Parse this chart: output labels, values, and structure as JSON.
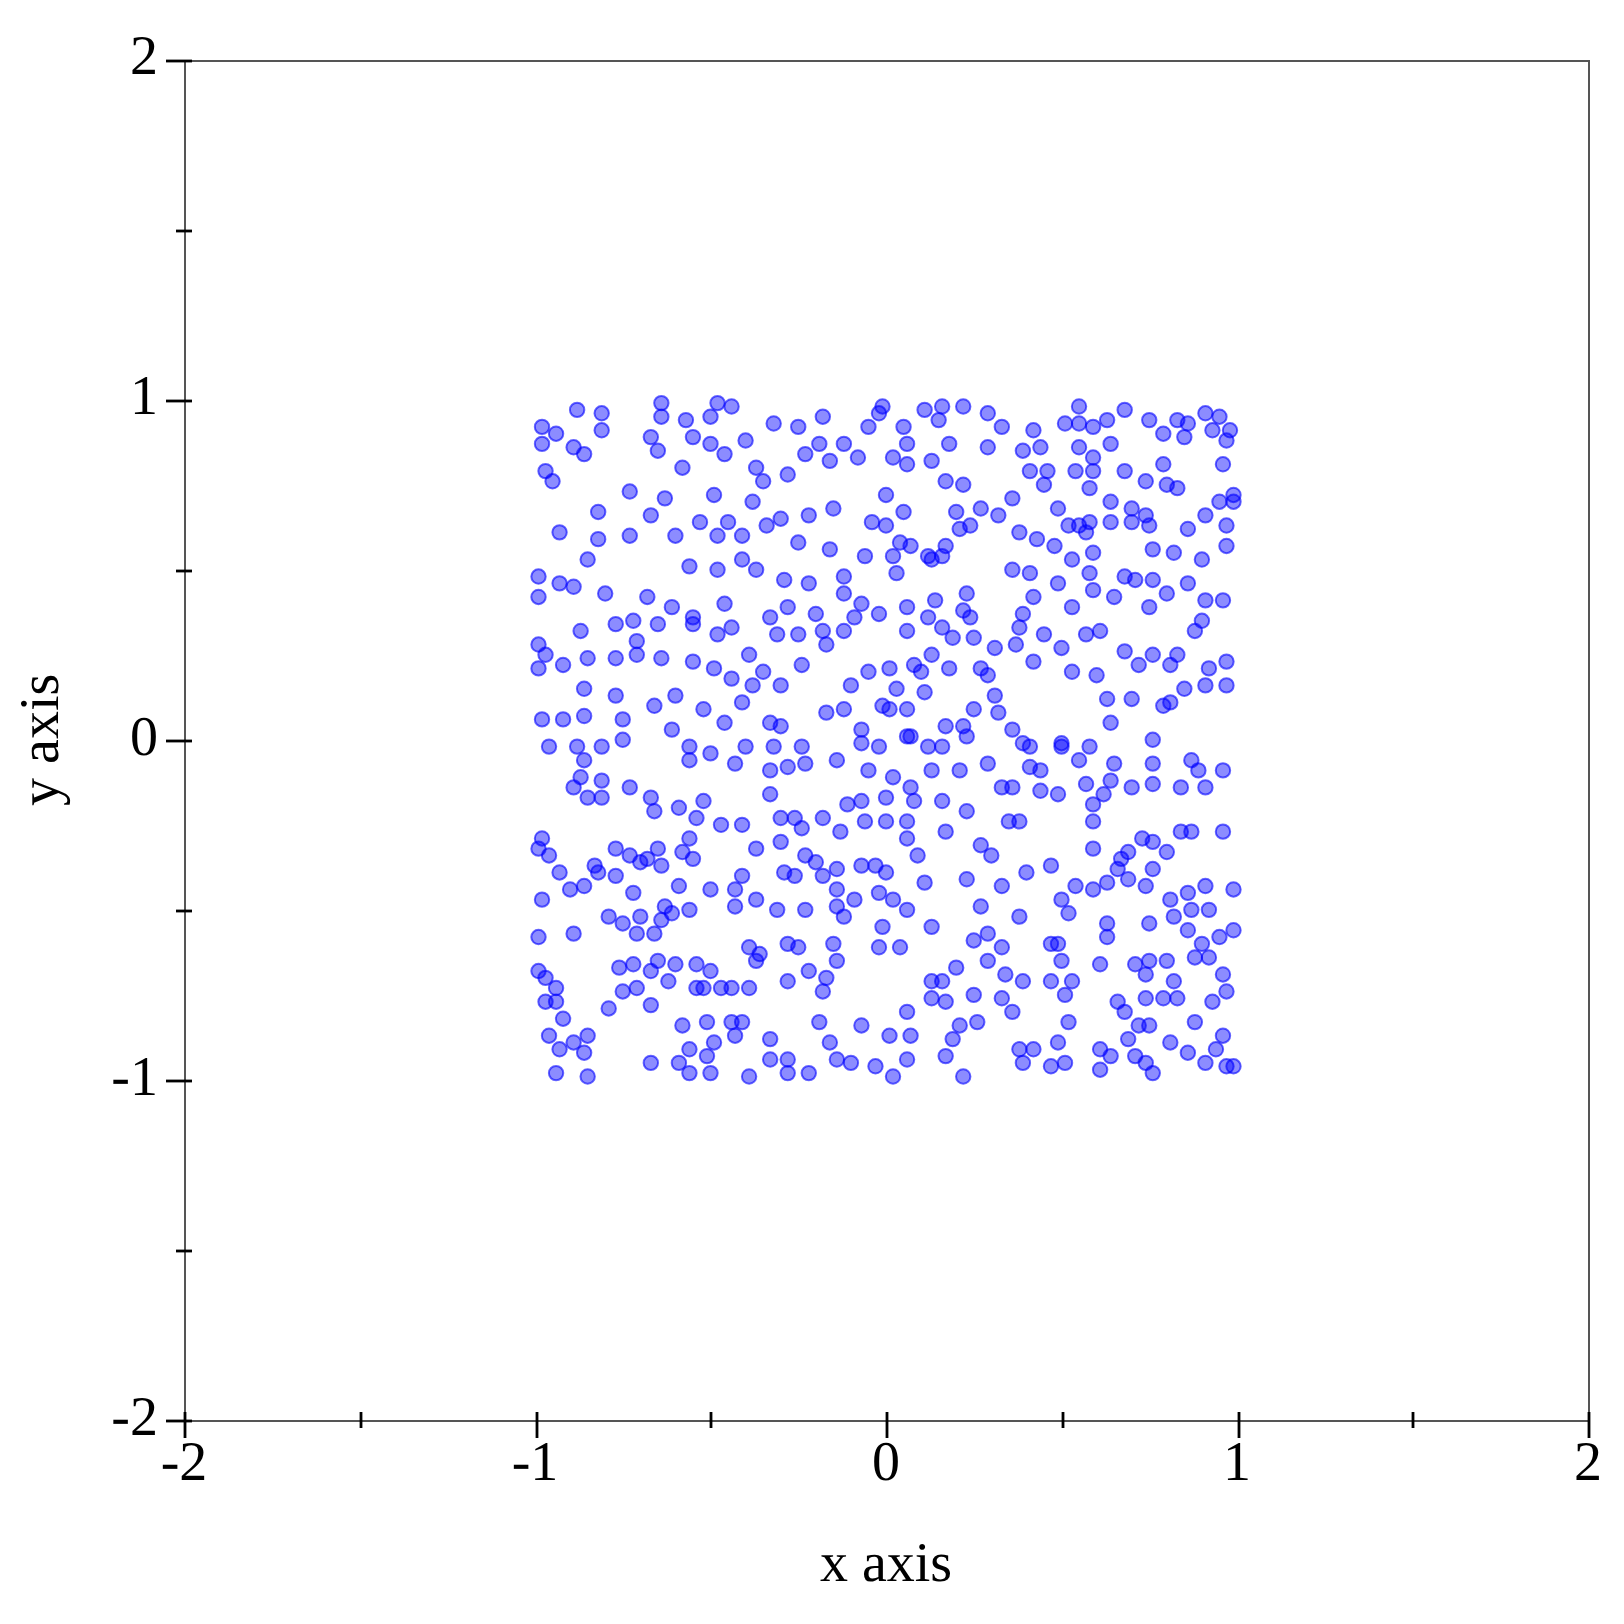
{
  "chart_data": {
    "type": "scatter",
    "xlabel": "x axis",
    "ylabel": "y axis",
    "xlim": [
      -2,
      2
    ],
    "ylim": [
      -2,
      2
    ],
    "xticks": [
      -2,
      {
        "value": -1.5,
        "label": null
      },
      -1,
      {
        "value": -0.5,
        "label": null
      },
      0,
      {
        "value": 0.5,
        "label": null
      },
      1,
      {
        "value": 1.5,
        "label": null
      },
      2
    ],
    "yticks": [
      -2,
      {
        "value": -1.5,
        "label": null
      },
      -1,
      {
        "value": -0.5,
        "label": null
      },
      0,
      {
        "value": 0.5,
        "label": null
      },
      1,
      {
        "value": 1.5,
        "label": null
      },
      2
    ],
    "grid": false,
    "legend": false,
    "marker": "circle",
    "color": "#0000ff",
    "x": [
      -0.98,
      -0.98,
      -0.94,
      -0.88,
      -0.81,
      -0.81,
      -0.89,
      -0.86,
      -0.97,
      -0.95,
      -0.64,
      -0.64,
      -0.57,
      -0.55,
      -0.67,
      -0.65,
      -0.58,
      -0.48,
      -0.44,
      -0.5,
      -0.5,
      -0.46,
      -0.4,
      -0.73,
      -0.82,
      -0.93,
      -0.82,
      -0.73,
      -0.67,
      -0.63,
      -0.6,
      -0.53,
      -0.49,
      -0.48,
      -0.45,
      -0.41,
      -0.38,
      -0.35,
      -0.37,
      -0.34,
      -0.3,
      -0.28,
      -0.32,
      -0.25,
      -0.18,
      -0.19,
      -0.23,
      -0.12,
      -0.16,
      -0.08,
      -0.02,
      -0.05,
      -0.22,
      -0.15,
      -0.04,
      0,
      -0.25,
      -0.16,
      -0.06,
      -0.56,
      -0.48,
      -0.41,
      -0.37,
      -0.29,
      -0.22,
      -0.12,
      -0.12,
      -0.07,
      -0.99,
      -0.99,
      -0.93,
      -0.89,
      -0.85,
      -0.8,
      -0.68,
      -0.61,
      -0.55,
      -0.46,
      -0.33,
      -0.28,
      -0.2,
      -0.09,
      -0.02,
      -0.87,
      -0.77,
      -0.72,
      -0.71,
      -0.65,
      -0.55,
      -0.48,
      -0.44,
      -0.39,
      -0.31,
      -0.25,
      -0.18,
      -0.17,
      -0.12,
      -0.99,
      -0.97,
      -0.92,
      -0.99,
      -0.85,
      -0.77,
      -0.71,
      -0.64,
      -0.55,
      -0.49,
      -0.44,
      -0.38,
      -0.35,
      -0.3,
      -0.24,
      -0.1,
      -0.05,
      -0.86,
      -0.77,
      -0.66,
      -0.6,
      -0.52,
      -0.46,
      -0.41,
      -0.33,
      -0.3,
      -0.17,
      -0.12,
      -0.07,
      -0.01,
      -0.98,
      -0.92,
      -0.86,
      -0.75,
      -0.61,
      -0.01,
      0.11,
      0.16,
      0.15,
      0.22,
      0.29,
      0.33,
      0.05,
      0.06,
      0.18,
      0.29,
      0.02,
      0.06,
      0.13,
      0.17,
      0.22,
      0.39,
      0.44,
      0.42,
      0.51,
      0.55,
      0.59,
      0.63,
      0.55,
      0.68,
      0.55,
      0.59,
      0.64,
      0.41,
      0.46,
      0.45,
      0.54,
      0.59,
      0.58,
      0.68,
      0.75,
      0.79,
      0.83,
      0.86,
      0.85,
      0.91,
      0.95,
      0.93,
      0.98,
      0.97,
      0.96,
      0.79,
      0.8,
      0.83,
      0.74,
      0.99,
      0.99,
      0.95,
      0.97,
      0.97,
      0.91,
      0.86,
      0.74,
      0.75,
      0.76,
      0.82,
      0.9,
      0.7,
      0.7,
      0.64,
      0.64,
      0.58,
      0.55,
      0.49,
      0.52,
      0.57,
      0.48,
      0.43,
      0.38,
      0.36,
      0.32,
      0.27,
      0.24,
      0.21,
      0.2,
      0.17,
      0.07,
      0.04,
      0.05,
      0,
      0.02,
      0.03,
      0.12,
      0.16,
      0.13,
      0.36,
      0.41,
      0.42,
      0.39,
      0.49,
      0.53,
      0.59,
      0.65,
      0.68,
      0.71,
      0.76,
      0.8,
      0.75,
      0.86,
      0.91,
      0.96,
      0.9,
      0.88,
      0.83,
      0.97,
      0.92,
      0.91,
      0.97,
      0.85,
      0.81,
      0.79,
      0.7,
      0.63,
      0.64,
      0.72,
      0.76,
      0.81,
      0.68,
      0.6,
      0.53,
      0.5,
      0.57,
      0.61,
      0.45,
      0.37,
      0.38,
      0.42,
      0.31,
      0.27,
      0.29,
      0.31,
      0.32,
      0.25,
      0.36,
      0.24,
      0.25,
      0.19,
      0.23,
      0.22,
      0.14,
      0.12,
      0.16,
      0.06,
      0.06,
      0.13,
      0.1,
      0.01,
      0.08,
      0.18,
      0.11,
      0.03,
      0.01,
      0.06,
      0.17,
      0.22,
      0.39,
      0.5,
      0.07,
      0.53,
      0.59,
      0.58,
      -0.96,
      -0.88,
      -0.86,
      -0.81,
      -0.75,
      -0.56,
      -0.56,
      -0.5,
      -0.43,
      -0.4,
      -0.32,
      -0.24,
      -0.33,
      -0.28,
      -0.23,
      -0.14,
      -0.07,
      -0.02,
      -0.05,
      0.02,
      -0.87,
      -0.81,
      -0.89,
      -0.85,
      -0.81,
      -0.73,
      -0.67,
      -0.66,
      -0.59,
      -0.52,
      -0.54,
      -0.47,
      -0.41,
      -0.33,
      -0.3,
      -0.26,
      -0.24,
      -0.18,
      -0.11,
      -0.07,
      -0.13,
      -0.06,
      0,
      -0.98,
      -0.99,
      -0.96,
      -0.93,
      -0.9,
      -0.86,
      -0.98,
      -0.89,
      -0.99,
      -0.83,
      -0.82,
      -0.77,
      -0.77,
      -0.73,
      -0.7,
      -0.72,
      -0.68,
      -0.65,
      -0.64,
      -0.58,
      -0.55,
      -0.56,
      -0.59,
      -0.63,
      -0.61,
      -0.64,
      -0.7,
      -0.75,
      -0.79,
      -0.71,
      -0.66,
      -0.56,
      -0.5,
      -0.43,
      -0.43,
      -0.41,
      -0.37,
      -0.37,
      -0.31,
      -0.3,
      -0.29,
      -0.26,
      -0.23,
      -0.23,
      -0.2,
      -0.18,
      -0.14,
      -0.14,
      -0.12,
      -0.14,
      -0.09,
      -0.02,
      -0.07,
      -0.03,
      -0.01,
      -0.02,
      -0.15,
      -0.14,
      -0.25,
      -0.28,
      -0.36,
      -0.39,
      -0.37,
      -0.22,
      -0.17,
      -0.18,
      -0.28,
      -0.39,
      -0.44,
      -0.47,
      -0.52,
      -0.54,
      -0.5,
      -0.54,
      -0.6,
      -0.65,
      -0.67,
      -0.62,
      -0.72,
      -0.76,
      -0.71,
      -0.75,
      -0.79,
      -0.67,
      -0.99,
      -0.97,
      -0.94,
      -0.97,
      -0.94,
      -0.92,
      -0.96,
      -0.93,
      -0.89,
      -0.86,
      -0.85,
      -0.94,
      -0.85,
      -0.67,
      -0.59,
      -0.56,
      -0.56,
      -0.5,
      -0.51,
      -0.58,
      -0.51,
      -0.49,
      -0.43,
      -0.44,
      -0.41,
      -0.39,
      -0.33,
      -0.33,
      -0.28,
      -0.28,
      -0.22,
      -0.19,
      -0.16,
      -0.14,
      -0.1,
      -0.03,
      0.02,
      -0.07,
      0.01,
      0.06,
      0.12,
      0.16,
      0.23,
      0.29,
      0.41,
      0.41,
      0.44,
      0.5,
      0.55,
      0.58,
      0.65,
      0.76,
      0.76,
      0.87,
      0.89,
      0.96,
      0.84,
      0.91,
      0.76,
      0.7,
      0.64,
      0.57,
      0.62,
      0.49,
      0.44,
      0.36,
      0.33,
      0.21,
      0.13,
      0,
      0.07,
      0.08,
      0.16,
      0.23,
      0.17,
      0.06,
      0.06,
      0.09,
      0,
      0.11,
      0.02,
      0.06,
      0.04,
      0.13,
      0.23,
      0.27,
      0.3,
      0.27,
      0.35,
      0.38,
      0.4,
      0.33,
      0.38,
      0.29,
      0.33,
      0.25,
      0.34,
      0.39,
      0.29,
      0.2,
      0.13,
      0.16,
      0.25,
      0.13,
      0.17,
      0.33,
      0.36,
      0.21,
      0.26,
      0.06,
      0.07,
      0.19,
      0.17,
      0.06,
      0.22,
      0.38,
      0.42,
      0.39,
      0.49,
      0.47,
      0.51,
      0.61,
      0.64,
      0.61,
      0.71,
      0.69,
      0.72,
      0.75,
      0.74,
      0.76,
      0.81,
      0.86,
      0.91,
      0.94,
      0.97,
      0.99,
      0.96,
      0.88,
      0.66,
      0.68,
      0.74,
      0.79,
      0.83,
      0.93,
      0.97,
      0.96,
      0.82,
      0.61,
      0.71,
      0.75,
      0.8,
      0.74,
      0.88,
      0.92,
      0.9,
      0.99,
      0.95,
      0.86,
      0.87,
      0.92,
      0.99,
      0.82,
      0.86,
      0.91,
      0.81,
      0.75,
      0.63,
      0.63,
      0.49,
      0.47,
      0.54,
      0.59,
      0.52,
      0.63,
      0.66,
      0.69,
      0.74,
      0.76,
      0.69,
      0.73,
      0.76,
      0.8,
      0.84,
      0.87,
      0.96,
      0.67,
      0.59,
      0.59,
      0.59,
      0.47,
      0.5,
      0.5,
      0.47,
      0.53,
      0.51,
      0.52
    ],
    "values": [
      0.92,
      0.87,
      0.9,
      0.97,
      0.96,
      0.91,
      0.86,
      0.84,
      0.79,
      0.76,
      0.99,
      0.95,
      0.94,
      0.89,
      0.89,
      0.85,
      0.8,
      0.99,
      0.98,
      0.95,
      0.87,
      0.84,
      0.88,
      0.73,
      0.67,
      0.61,
      0.59,
      0.6,
      0.66,
      0.71,
      0.6,
      0.64,
      0.72,
      0.6,
      0.64,
      0.6,
      0.7,
      0.76,
      0.8,
      0.63,
      0.65,
      0.78,
      0.93,
      0.92,
      0.95,
      0.87,
      0.84,
      0.87,
      0.82,
      0.83,
      0.96,
      0.92,
      0.66,
      0.68,
      0.64,
      0.72,
      0.58,
      0.56,
      0.54,
      0.51,
      0.5,
      0.53,
      0.5,
      0.47,
      0.46,
      0.48,
      0.43,
      0.4,
      0.48,
      0.42,
      0.46,
      0.45,
      0.53,
      0.43,
      0.42,
      0.39,
      0.36,
      0.4,
      0.36,
      0.39,
      0.37,
      0.36,
      0.37,
      0.32,
      0.34,
      0.35,
      0.29,
      0.34,
      0.34,
      0.31,
      0.33,
      0.25,
      0.31,
      0.31,
      0.32,
      0.28,
      0.32,
      0.28,
      0.25,
      0.22,
      0.21,
      0.24,
      0.24,
      0.25,
      0.24,
      0.23,
      0.21,
      0.18,
      0.16,
      0.2,
      0.16,
      0.22,
      0.16,
      0.2,
      0.15,
      0.13,
      0.1,
      0.13,
      0.09,
      0.05,
      0.11,
      0.05,
      0.04,
      0.08,
      0.09,
      0.03,
      0.1,
      0.06,
      0.06,
      0.07,
      0.06,
      0.03,
      0.98,
      0.97,
      0.98,
      0.94,
      0.98,
      0.96,
      0.92,
      0.92,
      0.87,
      0.87,
      0.86,
      0.83,
      0.81,
      0.82,
      0.76,
      0.75,
      0.85,
      0.86,
      0.91,
      0.93,
      0.93,
      0.92,
      0.94,
      0.98,
      0.97,
      0.86,
      0.83,
      0.87,
      0.79,
      0.79,
      0.75,
      0.79,
      0.79,
      0.74,
      0.79,
      0.94,
      0.9,
      0.94,
      0.93,
      0.89,
      0.96,
      0.95,
      0.91,
      0.91,
      0.88,
      0.81,
      0.81,
      0.75,
      0.74,
      0.76,
      0.72,
      0.7,
      0.7,
      0.63,
      0.57,
      0.66,
      0.62,
      0.66,
      0.63,
      0.56,
      0.55,
      0.53,
      0.68,
      0.64,
      0.7,
      0.64,
      0.64,
      0.63,
      0.68,
      0.63,
      0.61,
      0.57,
      0.59,
      0.61,
      0.71,
      0.66,
      0.68,
      0.63,
      0.62,
      0.67,
      0.57,
      0.57,
      0.58,
      0.67,
      0.63,
      0.54,
      0.49,
      0.54,
      0.54,
      0.53,
      0.5,
      0.49,
      0.42,
      0.37,
      0.46,
      0.39,
      0.44,
      0.42,
      0.48,
      0.47,
      0.47,
      0.43,
      0.39,
      0.46,
      0.41,
      0.41,
      0.35,
      0.32,
      0.25,
      0.23,
      0.21,
      0.16,
      0.16,
      0.15,
      0.11,
      0.1,
      0.12,
      0.12,
      0.05,
      0.22,
      0.25,
      0.22,
      0.26,
      0.19,
      0.2,
      0.27,
      0.31,
      0.32,
      0.31,
      0.28,
      0.33,
      0.23,
      0.27,
      0.21,
      0.19,
      0.13,
      0.08,
      0.09,
      0.03,
      0.36,
      0.3,
      0.3,
      0.43,
      0.38,
      0.41,
      0.36,
      0.33,
      0.39,
      0.32,
      0.25,
      0.2,
      0.21,
      0.22,
      0.21,
      0.14,
      0.15,
      0.09,
      0.09,
      0.04,
      0.04,
      -0.01,
      -0.01,
      0.01,
      0.53,
      0.55,
      0.49,
      -0.02,
      -0.02,
      -0.06,
      -0.02,
      0,
      -0.02,
      -0.06,
      -0.04,
      -0.07,
      -0.02,
      -0.02,
      -0.02,
      -0.09,
      -0.08,
      -0.07,
      -0.06,
      -0.01,
      -0.02,
      -0.09,
      -0.11,
      -0.11,
      -0.12,
      -0.14,
      -0.17,
      -0.17,
      -0.14,
      -0.17,
      -0.21,
      -0.2,
      -0.18,
      -0.23,
      -0.25,
      -0.25,
      -0.16,
      -0.23,
      -0.23,
      -0.26,
      -0.23,
      -0.19,
      -0.18,
      -0.27,
      -0.24,
      -0.24,
      -0.29,
      -0.32,
      -0.34,
      -0.39,
      -0.44,
      -0.43,
      -0.47,
      -0.57,
      -0.58,
      -0.37,
      -0.39,
      -0.32,
      -0.4,
      -0.34,
      -0.36,
      -0.45,
      -0.35,
      -0.32,
      -0.37,
      -0.33,
      -0.35,
      -0.29,
      -0.43,
      -0.49,
      -0.51,
      -0.53,
      -0.52,
      -0.54,
      -0.52,
      -0.57,
      -0.57,
      -0.5,
      -0.44,
      -0.44,
      -0.49,
      -0.4,
      -0.32,
      -0.47,
      -0.5,
      -0.3,
      -0.39,
      -0.4,
      -0.5,
      -0.34,
      -0.36,
      -0.4,
      -0.38,
      -0.44,
      -0.52,
      -0.49,
      -0.47,
      -0.45,
      -0.37,
      -0.37,
      -0.55,
      -0.61,
      -0.6,
      -0.65,
      -0.61,
      -0.6,
      -0.63,
      -0.61,
      -0.65,
      -0.68,
      -0.7,
      -0.74,
      -0.71,
      -0.73,
      -0.73,
      -0.73,
      -0.73,
      -0.73,
      -0.68,
      -0.66,
      -0.66,
      -0.65,
      -0.68,
      -0.71,
      -0.66,
      -0.67,
      -0.73,
      -0.74,
      -0.79,
      -0.78,
      -0.68,
      -0.7,
      -0.73,
      -0.77,
      -0.77,
      -0.82,
      -0.87,
      -0.91,
      -0.89,
      -0.92,
      -0.87,
      -0.98,
      -0.99,
      -0.95,
      -0.95,
      -0.91,
      -0.98,
      -0.98,
      -0.93,
      -0.84,
      -0.83,
      -0.89,
      -0.87,
      -0.83,
      -0.83,
      -0.99,
      -0.88,
      -0.94,
      -0.98,
      -0.94,
      -0.98,
      -0.83,
      -0.89,
      -0.94,
      -0.95,
      -0.96,
      -0.99,
      -0.84,
      -0.87,
      0.01,
      -0.02,
      -0.02,
      0.01,
      -0.07,
      -0.02,
      -0.08,
      -0.09,
      -0.02,
      -0.06,
      -0.02,
      -0.07,
      0,
      -0.07,
      -0.06,
      -0.09,
      -0.09,
      -0.14,
      -0.14,
      -0.13,
      -0.14,
      -0.12,
      -0.13,
      -0.16,
      -0.16,
      -0.15,
      -0.14,
      -0.14,
      -0.09,
      -0.09,
      -0.17,
      -0.14,
      -0.18,
      -0.18,
      -0.21,
      -0.27,
      -0.24,
      -0.29,
      -0.34,
      -0.39,
      -0.42,
      -0.47,
      -0.5,
      -0.61,
      -0.55,
      -0.41,
      -0.49,
      -0.34,
      -0.31,
      -0.24,
      -0.24,
      -0.39,
      -0.43,
      -0.52,
      -0.57,
      -0.61,
      -0.59,
      -0.69,
      -0.71,
      -0.65,
      -0.67,
      -0.71,
      -0.71,
      -0.75,
      -0.76,
      -0.77,
      -0.76,
      -0.8,
      -0.84,
      -0.83,
      -0.8,
      -0.87,
      -0.88,
      -0.93,
      -0.94,
      -0.99,
      -0.91,
      -0.91,
      -0.95,
      -0.89,
      -0.96,
      -0.95,
      -0.91,
      -0.93,
      -0.97,
      -0.93,
      -0.88,
      -0.84,
      -0.84,
      -0.95,
      -0.98,
      -0.89,
      -0.92,
      -0.95,
      -0.91,
      -0.96,
      -0.96,
      -0.87,
      -0.83,
      -0.77,
      -0.8,
      -0.76,
      -0.76,
      -0.76,
      -0.77,
      -0.74,
      -0.69,
      -0.71,
      -0.66,
      -0.66,
      -0.65,
      -0.65,
      -0.69,
      -0.64,
      -0.64,
      -0.6,
      -0.56,
      -0.58,
      -0.56,
      -0.5,
      -0.5,
      -0.44,
      -0.52,
      -0.45,
      -0.43,
      -0.47,
      -0.54,
      -0.54,
      -0.58,
      -0.6,
      -0.6,
      -0.43,
      -0.44,
      -0.51,
      -0.42,
      -0.38,
      -0.41,
      -0.43,
      -0.38,
      -0.33,
      -0.29,
      -0.3,
      -0.33,
      -0.27,
      -0.27,
      -0.27,
      -0.35,
      -0.32,
      -0.19,
      -0.24,
      -0.37,
      -0.47,
      -0.65,
      -0.71,
      -0.71,
      -0.75,
      -0.83
    ]
  }
}
